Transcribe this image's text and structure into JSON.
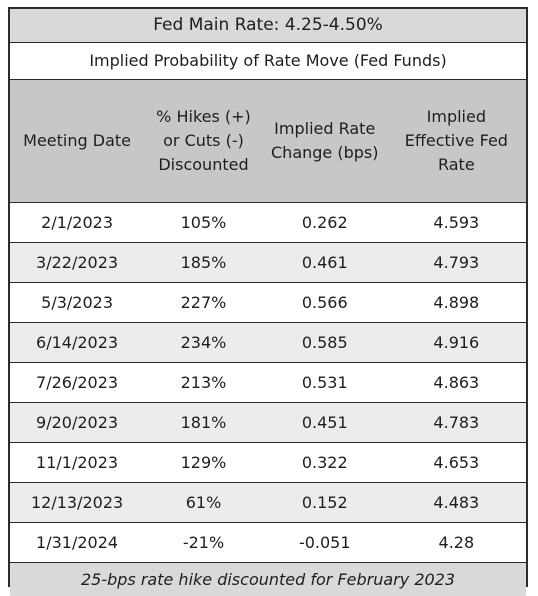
{
  "title": "Fed Main Rate: 4.25-4.50%",
  "subtitle": "Implied Probability of Rate Move (Fed Funds)",
  "headers": [
    "Meeting Date",
    "% Hikes (+) or Cuts (-) Discounted",
    "Implied Rate Change (bps)",
    "Implied Effective Fed Rate"
  ],
  "rows": [
    [
      "2/1/2023",
      "105%",
      "0.262",
      "4.593"
    ],
    [
      "3/22/2023",
      "185%",
      "0.461",
      "4.793"
    ],
    [
      "5/3/2023",
      "227%",
      "0.566",
      "4.898"
    ],
    [
      "6/14/2023",
      "234%",
      "0.585",
      "4.916"
    ],
    [
      "7/26/2023",
      "213%",
      "0.531",
      "4.863"
    ],
    [
      "9/20/2023",
      "181%",
      "0.451",
      "4.783"
    ],
    [
      "11/1/2023",
      "129%",
      "0.322",
      "4.653"
    ],
    [
      "12/13/2023",
      "61%",
      "0.152",
      "4.483"
    ],
    [
      "1/31/2024",
      "-21%",
      "-0.051",
      "4.28"
    ]
  ],
  "footer": "25-bps rate hike discounted for February 2023"
}
